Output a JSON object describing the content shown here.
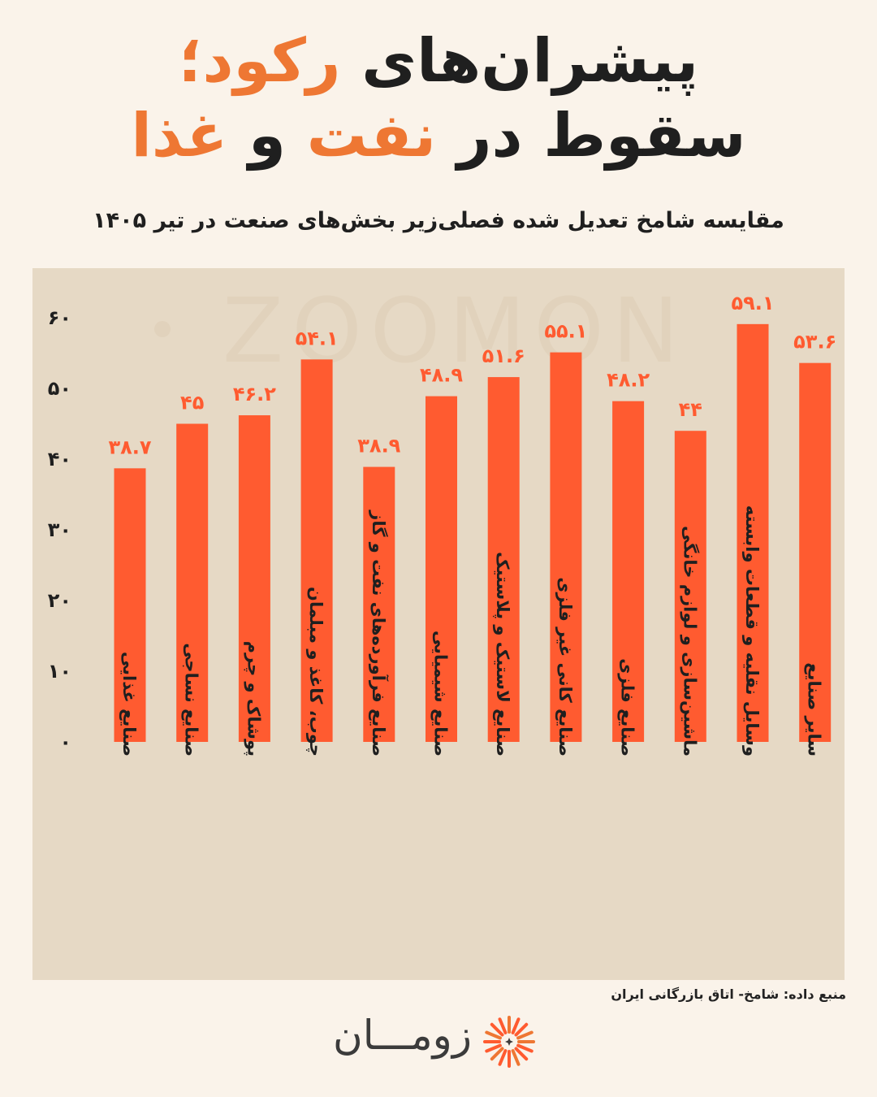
{
  "title": {
    "line1_dark": "پیشران‌های",
    "line1_accent": "رکود؛",
    "line2_dark_1": "سقوط در",
    "line2_accent_1": "نفت",
    "line2_dark_2": "و",
    "line2_accent_2": "غذا"
  },
  "subtitle": "مقایسه شامخ تعدیل شده فصلی‌زیر بخش‌های صنعت در تیر ۱۴۰۵",
  "source": "منبع داده: شامخ- اتاق بازرگانی ایران",
  "brand": {
    "name": "زومـــان",
    "watermark": "ZOOMON"
  },
  "colors": {
    "bar": "#ff5b30",
    "label": "#ff5b30",
    "accent": "#ee7733",
    "panel": "#e6d9c5",
    "background": "#faf3ea"
  },
  "chart_data": {
    "type": "bar",
    "title": "مقایسه شامخ تعدیل شده فصلی‌زیر بخش‌های صنعت در تیر ۱۴۰۵",
    "categories": [
      "صنایع غذایی",
      "صنایع نساجی",
      "پوشاک و چرم",
      "چوب، کاغذ و مبلمان",
      "صنایع فرآورده‌های نفت و گاز",
      "صنایع شیمیایی",
      "صنایع لاستیک و پلاستیک",
      "صنایع کانی غیر فلزی",
      "صنایع فلزی",
      "ماشین‌سازی و لوازم خانگی",
      "وسایل نقلیه و قطعات وابسته",
      "سایر صنایع"
    ],
    "values": [
      38.7,
      45,
      46.2,
      54.1,
      38.9,
      48.9,
      51.6,
      55.1,
      48.2,
      44,
      59.1,
      53.6
    ],
    "value_labels": [
      "۳۸.۷",
      "۴۵",
      "۴۶.۲",
      "۵۴.۱",
      "۳۸.۹",
      "۴۸.۹",
      "۵۱.۶",
      "۵۵.۱",
      "۴۸.۲",
      "۴۴",
      "۵۹.۱",
      "۵۳.۶"
    ],
    "yticks": [
      0,
      10,
      20,
      30,
      40,
      50,
      60
    ],
    "ytick_labels": [
      "۰",
      "۱۰",
      "۲۰",
      "۳۰",
      "۴۰",
      "۵۰",
      "۶۰"
    ],
    "ylim": [
      0,
      60
    ],
    "xlabel": "",
    "ylabel": "",
    "grid": false,
    "legend": "none"
  }
}
